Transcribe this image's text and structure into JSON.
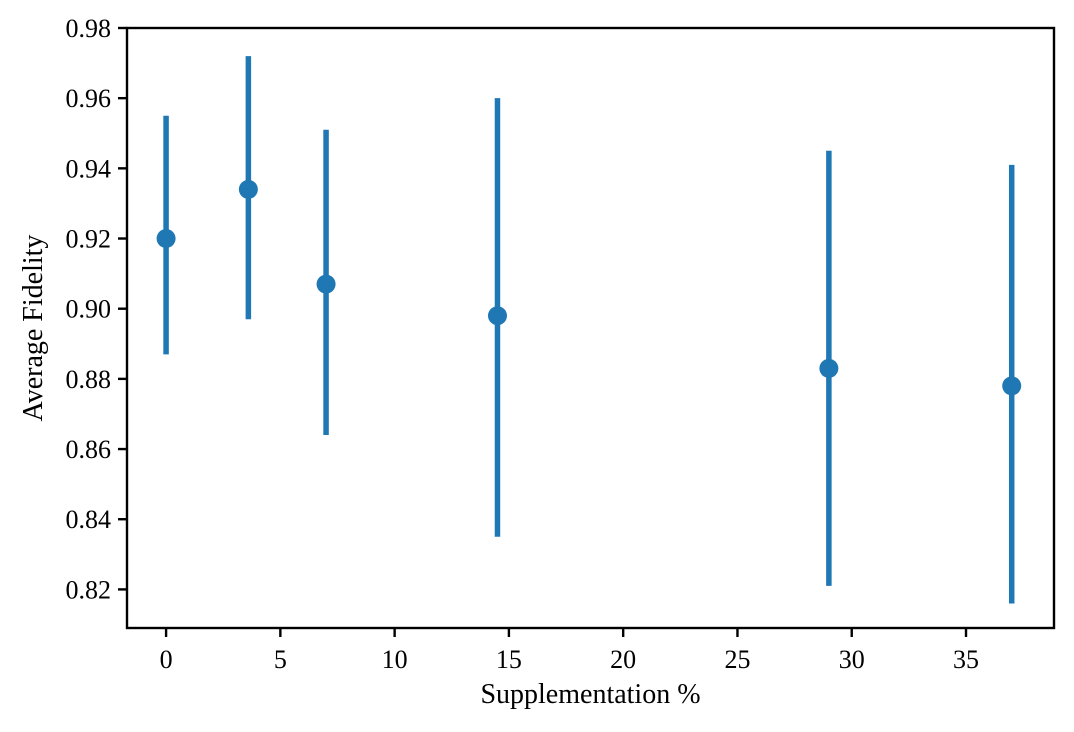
{
  "figure": {
    "background": "#ffffff"
  },
  "chart_data": {
    "type": "scatter",
    "subtype": "errorbar",
    "title": "",
    "xlabel": "Supplementation %",
    "ylabel": "Average Fidelity",
    "x": [
      0,
      3.6,
      7,
      14.5,
      29,
      37
    ],
    "series": [
      {
        "name": "average-fidelity",
        "y": [
          0.92,
          0.934,
          0.907,
          0.898,
          0.883,
          0.878
        ],
        "y_err_low": [
          0.887,
          0.897,
          0.864,
          0.835,
          0.821,
          0.816
        ],
        "y_err_high": [
          0.955,
          0.972,
          0.951,
          0.96,
          0.945,
          0.941
        ]
      }
    ],
    "xticks": [
      0,
      5,
      10,
      15,
      20,
      25,
      30,
      35
    ],
    "yticks": [
      0.82,
      0.84,
      0.86,
      0.88,
      0.9,
      0.92,
      0.94,
      0.96,
      0.98
    ],
    "xlim": [
      -1.71,
      38.85
    ],
    "ylim": [
      0.809,
      0.98
    ],
    "grid": false,
    "legend_position": "none",
    "marker_color": "#1f77b4",
    "axis_color": "#000000"
  }
}
